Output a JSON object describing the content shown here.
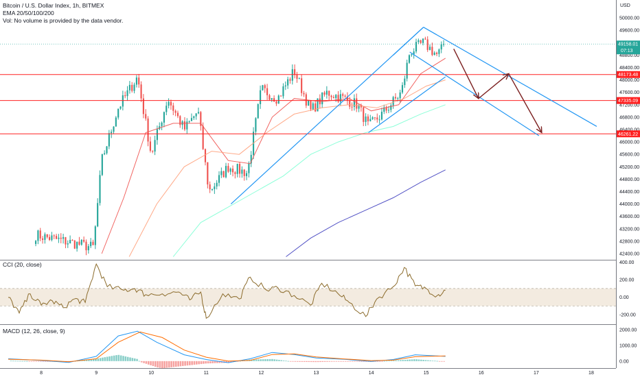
{
  "header": {
    "title_line": "Bitcoin / U.S. Dollar Index, 1h, BITMEX",
    "indicator_line": "EMA 20/50/100/200",
    "volume_note": "Vol: No volume is provided by the data vendor.",
    "currency": "USD"
  },
  "panes": {
    "cci_label": "CCI (20, close)",
    "macd_label": "MACD (12, 26, close, 9)"
  },
  "colors": {
    "up": "#26a69a",
    "down": "#ef5350",
    "level_line": "#ff2020",
    "channel": "#2196f3",
    "arrow": "#7b1f1f",
    "ema20": "#ef5350",
    "ema50": "#ffa07a",
    "ema100": "#7fffd4",
    "ema200": "#3f3fbf",
    "cci": "#8b6b2b",
    "macd": "#2196f3",
    "signal": "#ff6d00",
    "last_tag": "#26a69a",
    "level_tag": "#ff2020"
  },
  "chart_data": {
    "type": "candlestick",
    "symbol": "Bitcoin / U.S. Dollar Index",
    "interval": "1h",
    "exchange": "BITMEX",
    "ylim": [
      42200,
      50400
    ],
    "price_ticks": [
      42400,
      42800,
      43200,
      43600,
      44000,
      44400,
      44800,
      45200,
      45600,
      46000,
      46400,
      46800,
      47200,
      47600,
      48000,
      48400,
      48800,
      49200,
      49600,
      50000
    ],
    "x_ticks": [
      "8",
      "9",
      "10",
      "11",
      "12",
      "13",
      "14",
      "15",
      "16",
      "17",
      "18"
    ],
    "anchor_points": [
      {
        "x": 7.9,
        "price": 43000
      },
      {
        "x": 8.95,
        "price": 42600
      },
      {
        "x": 9.1,
        "price": 45400
      },
      {
        "x": 9.4,
        "price": 47100
      },
      {
        "x": 9.75,
        "price": 48100
      },
      {
        "x": 10.0,
        "price": 45600
      },
      {
        "x": 10.3,
        "price": 47400
      },
      {
        "x": 10.6,
        "price": 46400
      },
      {
        "x": 10.85,
        "price": 47000
      },
      {
        "x": 11.05,
        "price": 44400
      },
      {
        "x": 11.4,
        "price": 45200
      },
      {
        "x": 11.75,
        "price": 45000
      },
      {
        "x": 12.0,
        "price": 47700
      },
      {
        "x": 12.3,
        "price": 47400
      },
      {
        "x": 12.6,
        "price": 48300
      },
      {
        "x": 12.9,
        "price": 47000
      },
      {
        "x": 13.2,
        "price": 47600
      },
      {
        "x": 13.5,
        "price": 47400
      },
      {
        "x": 13.75,
        "price": 47200
      },
      {
        "x": 13.95,
        "price": 46500
      },
      {
        "x": 14.2,
        "price": 46900
      },
      {
        "x": 14.55,
        "price": 47600
      },
      {
        "x": 14.7,
        "price": 48900
      },
      {
        "x": 14.95,
        "price": 49200
      },
      {
        "x": 15.2,
        "price": 48800
      },
      {
        "x": 15.35,
        "price": 49158
      }
    ],
    "ema_series": [
      {
        "name": "EMA 20",
        "points": [
          [
            9.1,
            42400
          ],
          [
            9.5,
            44200
          ],
          [
            9.9,
            46300
          ],
          [
            10.4,
            46600
          ],
          [
            10.9,
            46600
          ],
          [
            11.4,
            45400
          ],
          [
            11.8,
            45300
          ],
          [
            12.2,
            46800
          ],
          [
            12.6,
            47400
          ],
          [
            13.1,
            47300
          ],
          [
            13.6,
            47400
          ],
          [
            14.0,
            47000
          ],
          [
            14.5,
            47200
          ],
          [
            14.9,
            48200
          ],
          [
            15.35,
            48700
          ]
        ]
      },
      {
        "name": "EMA 50",
        "points": [
          [
            9.6,
            42300
          ],
          [
            10.1,
            44000
          ],
          [
            10.6,
            45200
          ],
          [
            11.1,
            45700
          ],
          [
            11.6,
            45600
          ],
          [
            12.1,
            46300
          ],
          [
            12.6,
            46900
          ],
          [
            13.1,
            47100
          ],
          [
            13.6,
            47200
          ],
          [
            14.1,
            47100
          ],
          [
            14.6,
            47400
          ],
          [
            15.0,
            47800
          ],
          [
            15.35,
            48000
          ]
        ]
      },
      {
        "name": "EMA 100",
        "points": [
          [
            10.4,
            42300
          ],
          [
            10.9,
            43400
          ],
          [
            11.4,
            43900
          ],
          [
            11.9,
            44400
          ],
          [
            12.4,
            44900
          ],
          [
            12.9,
            45600
          ],
          [
            13.4,
            46000
          ],
          [
            13.9,
            46300
          ],
          [
            14.4,
            46500
          ],
          [
            14.9,
            46900
          ],
          [
            15.35,
            47200
          ]
        ]
      },
      {
        "name": "EMA 200",
        "points": [
          [
            12.45,
            42300
          ],
          [
            12.9,
            42900
          ],
          [
            13.4,
            43400
          ],
          [
            13.9,
            43800
          ],
          [
            14.4,
            44200
          ],
          [
            14.9,
            44700
          ],
          [
            15.35,
            45100
          ]
        ]
      }
    ],
    "horizontal_levels": [
      {
        "price": 48173.48,
        "label": "48173.48"
      },
      {
        "price": 47335.09,
        "label": "47335.09"
      },
      {
        "price": 46261.22,
        "label": "46261.22"
      }
    ],
    "current_price": {
      "value": 49158.01,
      "label": "49158.01",
      "countdown": "07:13"
    },
    "channels": [
      {
        "name": "ascending channel upper",
        "from": [
          11.45,
          44000
        ],
        "to": [
          14.95,
          49700
        ]
      },
      {
        "name": "ascending channel lower",
        "from": [
          13.95,
          46300
        ],
        "to": [
          15.35,
          48100
        ]
      },
      {
        "name": "ascending channel top edge",
        "from": [
          14.4,
          48800
        ],
        "to": [
          14.95,
          49700
        ]
      },
      {
        "name": "descending channel upper",
        "from": [
          14.95,
          49700
        ],
        "to": [
          18.1,
          46500
        ]
      },
      {
        "name": "descending channel lower",
        "from": [
          14.7,
          48900
        ],
        "to": [
          17.05,
          46200
        ]
      }
    ],
    "projection_arrows": [
      {
        "from": [
          15.5,
          49000
        ],
        "to": [
          15.95,
          47400
        ]
      },
      {
        "from": [
          15.95,
          47400
        ],
        "to": [
          16.5,
          48200
        ]
      },
      {
        "from": [
          16.5,
          48200
        ],
        "to": [
          17.1,
          46300
        ]
      }
    ],
    "cci": {
      "label": "CCI (20, close)",
      "ylim": [
        -300,
        420
      ],
      "ticks": [
        400,
        200,
        0,
        -200
      ],
      "band": [
        -100,
        100
      ],
      "points": [
        [
          7.4,
          0
        ],
        [
          7.6,
          -180
        ],
        [
          7.8,
          40
        ],
        [
          8.0,
          -90
        ],
        [
          8.2,
          -40
        ],
        [
          8.4,
          -120
        ],
        [
          8.6,
          -20
        ],
        [
          8.8,
          -60
        ],
        [
          9.0,
          380
        ],
        [
          9.2,
          120
        ],
        [
          9.5,
          80
        ],
        [
          9.7,
          100
        ],
        [
          9.9,
          30
        ],
        [
          10.2,
          40
        ],
        [
          10.5,
          60
        ],
        [
          10.7,
          -30
        ],
        [
          10.9,
          60
        ],
        [
          11.0,
          -240
        ],
        [
          11.3,
          40
        ],
        [
          11.6,
          -20
        ],
        [
          11.8,
          230
        ],
        [
          12.1,
          80
        ],
        [
          12.3,
          110
        ],
        [
          12.6,
          20
        ],
        [
          12.9,
          -90
        ],
        [
          13.1,
          160
        ],
        [
          13.4,
          40
        ],
        [
          13.6,
          -60
        ],
        [
          13.9,
          -220
        ],
        [
          14.1,
          -20
        ],
        [
          14.4,
          120
        ],
        [
          14.6,
          340
        ],
        [
          14.8,
          130
        ],
        [
          15.0,
          100
        ],
        [
          15.2,
          20
        ],
        [
          15.35,
          80
        ]
      ]
    },
    "macd": {
      "label": "MACD (12, 26, close, 9)",
      "ylim": [
        -400,
        2300
      ],
      "ticks": [
        2000,
        1000,
        0
      ],
      "macd_line": [
        [
          7.4,
          150
        ],
        [
          8.0,
          40
        ],
        [
          8.5,
          -80
        ],
        [
          9.0,
          300
        ],
        [
          9.4,
          1600
        ],
        [
          9.75,
          1900
        ],
        [
          10.1,
          1200
        ],
        [
          10.6,
          400
        ],
        [
          11.0,
          100
        ],
        [
          11.4,
          -100
        ],
        [
          11.8,
          150
        ],
        [
          12.2,
          550
        ],
        [
          12.6,
          420
        ],
        [
          13.0,
          200
        ],
        [
          13.5,
          120
        ],
        [
          14.0,
          -20
        ],
        [
          14.4,
          100
        ],
        [
          14.8,
          400
        ],
        [
          15.35,
          300
        ]
      ],
      "signal_line": [
        [
          7.4,
          120
        ],
        [
          8.0,
          60
        ],
        [
          8.5,
          -40
        ],
        [
          9.0,
          150
        ],
        [
          9.4,
          1200
        ],
        [
          9.8,
          1850
        ],
        [
          10.2,
          1500
        ],
        [
          10.6,
          700
        ],
        [
          11.0,
          250
        ],
        [
          11.4,
          0
        ],
        [
          11.8,
          50
        ],
        [
          12.2,
          420
        ],
        [
          12.6,
          460
        ],
        [
          13.0,
          260
        ],
        [
          13.5,
          140
        ],
        [
          14.0,
          30
        ],
        [
          14.4,
          60
        ],
        [
          14.8,
          280
        ],
        [
          15.35,
          330
        ]
      ]
    }
  }
}
